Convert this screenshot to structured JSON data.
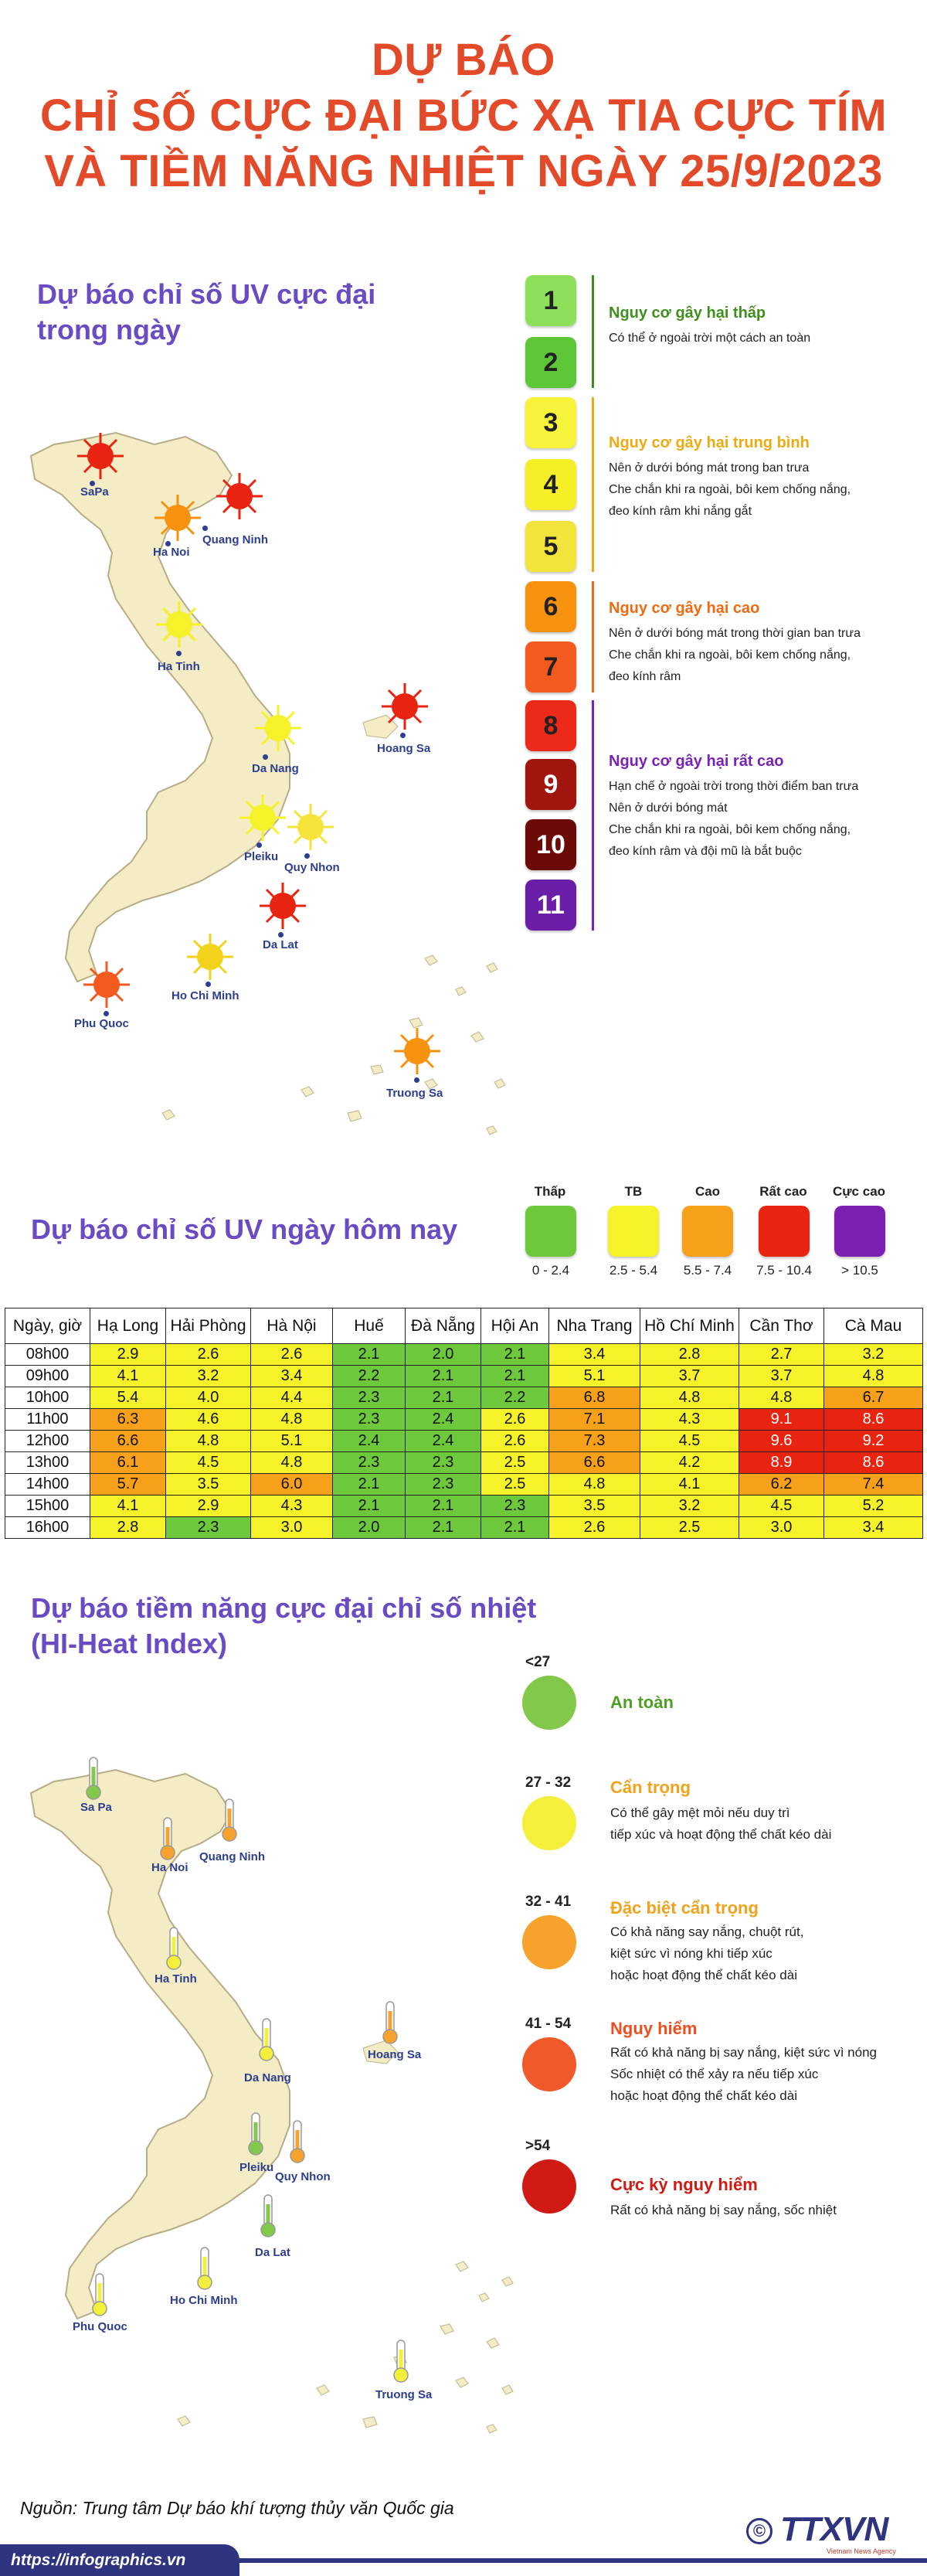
{
  "title": {
    "line1": "DỰ BÁO",
    "line2": "CHỈ SỐ CỰC ĐẠI BỨC XẠ TIA CỰC TÍM",
    "line3": "VÀ TIỀM NĂNG NHIỆT NGÀY 25/9/2023"
  },
  "uv_map": {
    "heading_line1": "Dự báo chỉ số UV cực đại",
    "heading_line2": "trong ngày",
    "cities": {
      "sapa": "SaPa",
      "hanoi": "Ha Noi",
      "quangninh": "Quang Ninh",
      "hatinh": "Ha Tinh",
      "danang": "Da Nang",
      "hoangsa": "Hoang Sa",
      "pleiku": "Pleiku",
      "quynhon": "Quy Nhon",
      "dalat": "Da Lat",
      "hcm": "Ho Chi Minh",
      "phuquoc": "Phu Quoc",
      "truongsa": "Truong Sa"
    }
  },
  "uv_scale": {
    "levels": [
      "1",
      "2",
      "3",
      "4",
      "5",
      "6",
      "7",
      "8",
      "9",
      "10",
      "11"
    ],
    "colors": [
      "#8ee05a",
      "#5cc637",
      "#f7f23a",
      "#f4ef26",
      "#f3e43c",
      "#f7920f",
      "#f25a1f",
      "#ec2a1a",
      "#a1150e",
      "#6b0a07",
      "#6a1ea8"
    ],
    "groups": [
      {
        "title": "Nguy cơ gây hại thấp",
        "color": "#3f8f1e",
        "lines": [
          "Có thể ở ngoài trời một cách an toàn"
        ]
      },
      {
        "title": "Nguy cơ gây hại trung bình",
        "color": "#eeaa12",
        "lines": [
          "Nên ở dưới bóng mát trong ban trưa",
          "Che chắn khi ra ngoài, bôi kem chống nắng,",
          "đeo kính râm khi nắng gắt"
        ]
      },
      {
        "title": "Nguy cơ gây hại cao",
        "color": "#f06a10",
        "lines": [
          "Nên ở dưới bóng mát trong thời gian ban trưa",
          "Che chắn khi ra ngoài, bôi kem chống nắng,",
          "đeo kính râm"
        ]
      },
      {
        "title": "Nguy cơ gây hại rất cao",
        "color": "#7a22b8",
        "lines": [
          "Hạn chế ở ngoài trời trong thời điểm ban trưa",
          "Nên ở dưới bóng mát",
          "Che chắn khi ra ngoài, bôi kem chống nắng,",
          "đeo kính râm và đội mũ là bắt buộc"
        ]
      }
    ]
  },
  "uv_today": {
    "heading": "Dự báo chỉ số UV ngày hôm nay",
    "legend": [
      {
        "label": "Thấp",
        "range": "0 - 2.4",
        "color": "#6dc83c"
      },
      {
        "label": "TB",
        "range": "2.5 - 5.4",
        "color": "#f6f22a"
      },
      {
        "label": "Cao",
        "range": "5.5 - 7.4",
        "color": "#f7a11a"
      },
      {
        "label": "Rất cao",
        "range": "7.5 - 10.4",
        "color": "#e8230f"
      },
      {
        "label": "Cực cao",
        "range": "> 10.5",
        "color": "#7b1fb0"
      }
    ]
  },
  "table": {
    "columns": [
      "Ngày, giờ",
      "Hạ Long",
      "Hải Phòng",
      "Hà Nội",
      "Huế",
      "Đà Nẵng",
      "Hội An",
      "Nha Trang",
      "Hồ Chí Minh",
      "Cần Thơ",
      "Cà Mau"
    ],
    "rows": [
      {
        "time": "08h00",
        "values": [
          "2.9",
          "2.6",
          "2.6",
          "2.1",
          "2.0",
          "2.1",
          "3.4",
          "2.8",
          "2.7",
          "3.2"
        ]
      },
      {
        "time": "09h00",
        "values": [
          "4.1",
          "3.2",
          "3.4",
          "2.2",
          "2.1",
          "2.1",
          "5.1",
          "3.7",
          "3.7",
          "4.8"
        ]
      },
      {
        "time": "10h00",
        "values": [
          "5.4",
          "4.0",
          "4.4",
          "2.3",
          "2.1",
          "2.2",
          "6.8",
          "4.8",
          "4.8",
          "6.7"
        ]
      },
      {
        "time": "11h00",
        "values": [
          "6.3",
          "4.6",
          "4.8",
          "2.3",
          "2.4",
          "2.6",
          "7.1",
          "4.3",
          "9.1",
          "8.6"
        ]
      },
      {
        "time": "12h00",
        "values": [
          "6.6",
          "4.8",
          "5.1",
          "2.4",
          "2.4",
          "2.6",
          "7.3",
          "4.5",
          "9.6",
          "9.2"
        ]
      },
      {
        "time": "13h00",
        "values": [
          "6.1",
          "4.5",
          "4.8",
          "2.3",
          "2.3",
          "2.5",
          "6.6",
          "4.2",
          "8.9",
          "8.6"
        ]
      },
      {
        "time": "14h00",
        "values": [
          "5.7",
          "3.5",
          "6.0",
          "2.1",
          "2.3",
          "2.5",
          "4.8",
          "4.1",
          "6.2",
          "7.4"
        ]
      },
      {
        "time": "15h00",
        "values": [
          "4.1",
          "2.9",
          "4.3",
          "2.1",
          "2.1",
          "2.3",
          "3.5",
          "3.2",
          "4.5",
          "5.2"
        ]
      },
      {
        "time": "16h00",
        "values": [
          "2.8",
          "2.3",
          "3.0",
          "2.0",
          "2.1",
          "2.1",
          "2.6",
          "2.5",
          "3.0",
          "3.4"
        ]
      }
    ]
  },
  "heat_index": {
    "heading_line1": "Dự báo tiềm năng cực đại chỉ số nhiệt",
    "heading_line2": "(HI-Heat Index)",
    "cities": {
      "sapa": "Sa Pa",
      "hanoi": "Ha Noi",
      "quangninh": "Quang Ninh",
      "hatinh": "Ha Tinh",
      "danang": "Da Nang",
      "hoangsa": "Hoang Sa",
      "pleiku": "Pleiku",
      "quynhon": "Quy Nhon",
      "dalat": "Da Lat",
      "hcm": "Ho Chi Minh",
      "phuquoc": "Phu Quoc",
      "truongsa": "Truong Sa"
    },
    "levels": [
      {
        "range": "<27",
        "title": "An toàn",
        "color": "#82c84a",
        "title_color": "#4ea024",
        "lines": []
      },
      {
        "range": "27 - 32",
        "title": "Cẩn trọng",
        "color": "#f4ef3a",
        "title_color": "#f0a21c",
        "lines": [
          "Có thể gây mệt mỏi nếu duy trì",
          "tiếp xúc và hoạt động thể chất kéo dài"
        ]
      },
      {
        "range": "32 - 41",
        "title": "Đặc biệt cẩn trọng",
        "color": "#f7a22c",
        "title_color": "#f0a21c",
        "lines": [
          "Có khả năng say nắng, chuột rút,",
          "kiệt sức vì nóng khi tiếp xúc",
          "hoặc hoạt động thể chất kéo dài"
        ]
      },
      {
        "range": "41 - 54",
        "title": "Nguy hiểm",
        "color": "#f05a2a",
        "title_color": "#ef4f1f",
        "lines": [
          "Rất có khả năng bị say nắng, kiệt sức vì nóng",
          "Sốc nhiệt có thể xảy ra nếu tiếp xúc",
          "hoặc hoạt động thể chất kéo dài"
        ]
      },
      {
        "range": ">54",
        "title": "Cực kỳ nguy hiểm",
        "color": "#d01a14",
        "title_color": "#d01a14",
        "lines": [
          "Rất có khả năng bị say nắng, sốc nhiệt"
        ]
      }
    ]
  },
  "footer": {
    "source": "Nguồn: Trung tâm Dự báo khí tượng thủy văn Quốc gia",
    "url": "https://infographics.vn",
    "logo": "TTXVN",
    "logo_sub": "Vietnam News Agency",
    "copyright": "©"
  }
}
